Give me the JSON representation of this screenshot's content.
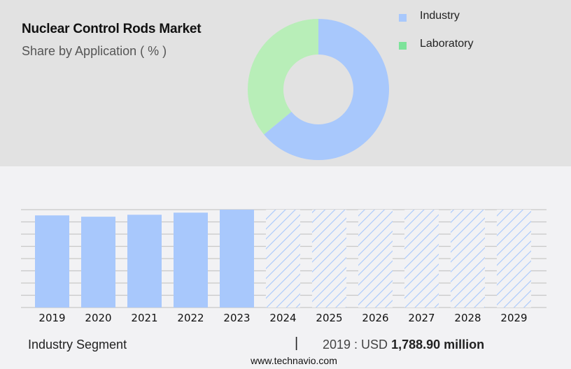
{
  "header": {
    "title": "Nuclear Control Rods Market",
    "subtitle": "Share by Application ( % )"
  },
  "legend": {
    "items": [
      {
        "label": "Industry",
        "color": "#a8c8fc"
      },
      {
        "label": "Laboratory",
        "color": "#7de39a"
      }
    ]
  },
  "footer": {
    "segment": "Industry Segment",
    "divider": "|",
    "value_prefix": "2019 : USD ",
    "value_bold": "1,788.90 million",
    "url": "www.technavio.com"
  },
  "colors": {
    "top_panel_bg": "#e2e2e2",
    "bottom_panel_bg": "#f2f2f4",
    "bar_fill": "#a8c8fc",
    "industry_slice": "#a8c8fc",
    "laboratory_slice": "#b8eeb8",
    "gridline": "#c8c8c8"
  },
  "chart_data": [
    {
      "type": "pie",
      "title": "Nuclear Control Rods Market",
      "subtitle": "Share by Application ( % )",
      "donut": true,
      "categories": [
        "Industry",
        "Laboratory"
      ],
      "values": [
        64,
        36
      ],
      "legend_position": "right"
    },
    {
      "type": "bar",
      "title": "Industry Segment",
      "categories": [
        "2019",
        "2020",
        "2021",
        "2022",
        "2023",
        "2024",
        "2025",
        "2026",
        "2027",
        "2028",
        "2029"
      ],
      "values": [
        1788.9,
        1763,
        1801,
        1842,
        1900,
        null,
        null,
        null,
        null,
        null,
        null
      ],
      "forecast": [
        false,
        false,
        false,
        false,
        false,
        true,
        true,
        true,
        true,
        true,
        true
      ],
      "annotation": "2019 : USD 1,788.90 million",
      "xlabel": "",
      "ylabel": "",
      "grid": true,
      "y_axis_labels_visible": false
    }
  ]
}
